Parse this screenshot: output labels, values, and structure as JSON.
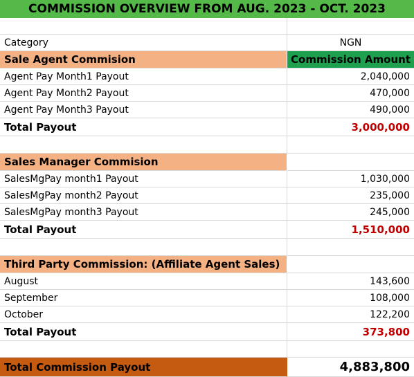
{
  "title": "COMMISSION OVERVIEW FROM AUG. 2023 - OCT.  2023",
  "header": {
    "category_label": "Category",
    "currency_label": "NGN"
  },
  "sales_agent": {
    "heading": "Sale Agent Commision",
    "amount_heading": "Commission Amount",
    "rows": [
      {
        "label": "Agent Pay Month1 Payout",
        "value": "2,040,000"
      },
      {
        "label": "Agent Pay Month2 Payout",
        "value": "470,000"
      },
      {
        "label": "Agent Pay Month3 Payout",
        "value": "490,000"
      }
    ],
    "total_label": "Total Payout",
    "total_value": "3,000,000"
  },
  "sales_manager": {
    "heading": "Sales Manager Commision",
    "rows": [
      {
        "label": "SalesMgPay month1 Payout",
        "value": "1,030,000"
      },
      {
        "label": "SalesMgPay month2 Payout",
        "value": "235,000"
      },
      {
        "label": "SalesMgPay month3 Payout",
        "value": "245,000"
      }
    ],
    "total_label": "Total Payout",
    "total_value": "1,510,000"
  },
  "third_party": {
    "heading": "Third Party Commission: (Affiliate Agent  Sales)",
    "rows": [
      {
        "label": "August",
        "value": "143,600"
      },
      {
        "label": "September",
        "value": "108,000"
      },
      {
        "label": "October",
        "value": "122,200"
      }
    ],
    "total_label": "Total Payout",
    "total_value": "373,800"
  },
  "grand_total": {
    "label": "Total Commission Payout",
    "value": "4,883,800"
  }
}
